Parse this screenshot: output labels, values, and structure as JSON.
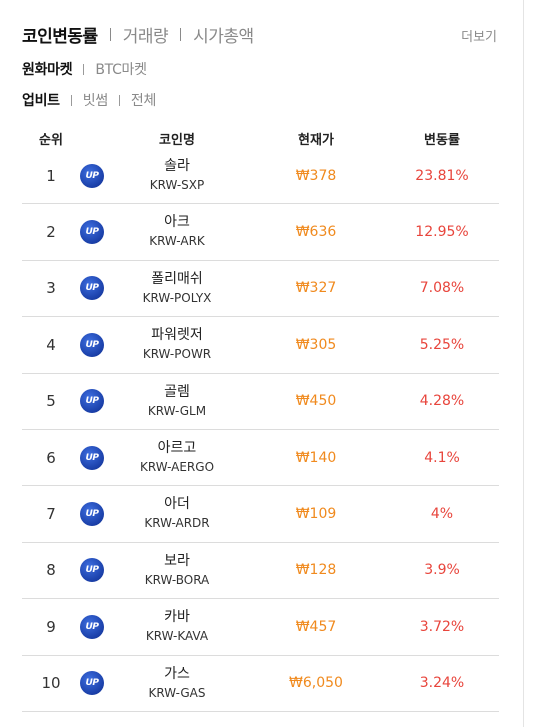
{
  "header": {
    "tabs": [
      "코인변동률",
      "거래량",
      "시가총액"
    ],
    "more_label": "더보기"
  },
  "market_tabs": [
    "원화마켓",
    "BTC마켓"
  ],
  "exchange_tabs": [
    "업비트",
    "빗썸",
    "전체"
  ],
  "table": {
    "columns": [
      "순위",
      "코인명",
      "현재가",
      "변동률"
    ],
    "logo_text": "UP",
    "rows": [
      {
        "rank": "1",
        "name": "솔라",
        "code": "KRW-SXP",
        "price": "₩378",
        "change": "23.81%"
      },
      {
        "rank": "2",
        "name": "아크",
        "code": "KRW-ARK",
        "price": "₩636",
        "change": "12.95%"
      },
      {
        "rank": "3",
        "name": "폴리매쉬",
        "code": "KRW-POLYX",
        "price": "₩327",
        "change": "7.08%"
      },
      {
        "rank": "4",
        "name": "파워렛저",
        "code": "KRW-POWR",
        "price": "₩305",
        "change": "5.25%"
      },
      {
        "rank": "5",
        "name": "골렘",
        "code": "KRW-GLM",
        "price": "₩450",
        "change": "4.28%"
      },
      {
        "rank": "6",
        "name": "아르고",
        "code": "KRW-AERGO",
        "price": "₩140",
        "change": "4.1%"
      },
      {
        "rank": "7",
        "name": "아더",
        "code": "KRW-ARDR",
        "price": "₩109",
        "change": "4%"
      },
      {
        "rank": "8",
        "name": "보라",
        "code": "KRW-BORA",
        "price": "₩128",
        "change": "3.9%"
      },
      {
        "rank": "9",
        "name": "카바",
        "code": "KRW-KAVA",
        "price": "₩457",
        "change": "3.72%"
      },
      {
        "rank": "10",
        "name": "가스",
        "code": "KRW-GAS",
        "price": "₩6,050",
        "change": "3.24%"
      }
    ]
  },
  "colors": {
    "price": "#f08a1e",
    "change_up": "#e8453c",
    "upbit_logo": "#1a3fa8"
  }
}
